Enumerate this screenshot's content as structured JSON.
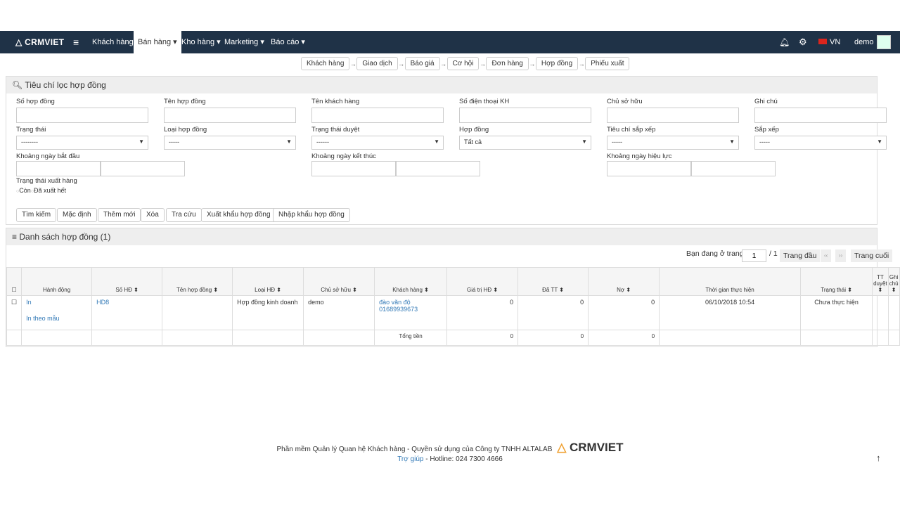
{
  "nav": {
    "logo": "CRMVIET",
    "items": [
      "Khách hàng",
      "Bán hàng ▾",
      "Kho hàng ▾",
      "Marketing ▾",
      "Báo cáo ▾"
    ],
    "lang": "VN",
    "user": "demo"
  },
  "flow": [
    "Khách hàng",
    "Giao dịch",
    "Báo giá",
    "Cơ hội",
    "Đơn hàng",
    "Hợp đồng",
    "Phiếu xuất"
  ],
  "filter": {
    "title": "Tiêu chí lọc hợp đồng",
    "text_fields": [
      "Số hợp đồng",
      "Tên hợp đồng",
      "Tên khách hàng",
      "Số điện thoại KH",
      "Chủ sở hữu",
      "Ghi chú"
    ],
    "selects": [
      {
        "label": "Trạng thái",
        "value": "--------"
      },
      {
        "label": "Loại hợp đồng",
        "value": "-----"
      },
      {
        "label": "Trạng thái duyệt",
        "value": "------"
      },
      {
        "label": "Hợp đồng",
        "value": "Tất cả"
      },
      {
        "label": "Tiêu chí sắp xếp",
        "value": "-----"
      },
      {
        "label": "Sắp xếp",
        "value": "-----"
      }
    ],
    "ranges": [
      "Khoảng ngày bắt đầu",
      "Khoảng ngày kết thúc",
      "Khoảng ngày hiệu lực"
    ],
    "ship_status": {
      "label": "Trạng thái xuất hàng",
      "options": [
        "Còn",
        "Đã xuất hết"
      ]
    },
    "buttons": [
      "Tìm kiếm",
      "Mặc định",
      "Thêm mới",
      "Xóa",
      "Tra cứu",
      "Xuất khẩu hợp đồng",
      "Nhập khẩu hợp đồng"
    ]
  },
  "list": {
    "title": "Danh sách hợp đồng (1)",
    "pagination": {
      "label": "Bạn đang ở trang",
      "page": "1",
      "total": "/ 1",
      "first": "Trang đầu",
      "prev": "‹‹",
      "next": "››",
      "last": "Trang cuối"
    },
    "columns": [
      "",
      "Hành động",
      "Số HĐ ⬍",
      "Tên hợp đồng ⬍",
      "Loại HĐ ⬍",
      "Chủ sở hữu ⬍",
      "Khách hàng ⬍",
      "Giá trị HĐ ⬍",
      "Đã TT ⬍",
      "Nợ ⬍",
      "Thời gian thực hiện",
      "Trạng thái ⬍",
      "TT duyệt ⬍",
      "Ghi chú ⬍"
    ],
    "rows": [
      {
        "actions": [
          "In",
          "In theo mẫu"
        ],
        "so_hd": "HD8",
        "ten": "",
        "loai": "Hợp đồng kinh doanh",
        "chu": "demo",
        "kh_name": "đào văn độ",
        "kh_phone": "01689939673",
        "gia_tri": "0",
        "da_tt": "0",
        "no": "0",
        "thoi_gian": "06/10/2018 10:54",
        "trang_thai": "Chưa thực hiện",
        "tt_duyet": "",
        "ghi_chu": ""
      }
    ],
    "total": {
      "label": "Tổng tiền",
      "gia_tri": "0",
      "da_tt": "0",
      "no": "0"
    }
  },
  "footer": {
    "line1": "Phần mềm Quản lý Quan hệ Khách hàng - Quyền sử dụng của Công ty TNHH ALTALAB",
    "logo": "CRMVIET",
    "help": "Trợ giúp",
    "hotline": " - Hotline: 024 7300 4666"
  },
  "colors": {
    "nav": "#1f3247",
    "link": "#337ab7",
    "logo_accent": "#f0a030"
  }
}
